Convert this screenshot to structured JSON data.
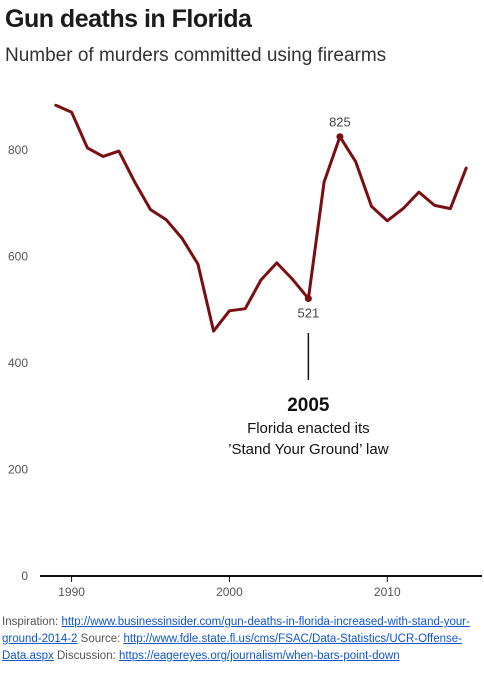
{
  "chart_data": {
    "type": "line",
    "title": "Gun deaths in Florida",
    "subtitle": "Number of murders committed using firearms",
    "xlim": [
      1988,
      2016
    ],
    "ylim": [
      0,
      900
    ],
    "y_inverted": true,
    "x_ticks": [
      "1990",
      "2000",
      "2010"
    ],
    "y_ticks": [
      "0",
      "200",
      "400",
      "600",
      "800"
    ],
    "grid": false,
    "colors": {
      "line": "#7a0f12"
    },
    "series": [
      {
        "x": [
          1989,
          1990,
          1991,
          1992,
          1993,
          1994,
          1995,
          1996,
          1997,
          1998,
          1999,
          2000,
          2001,
          2002,
          2003,
          2004,
          2005,
          2006,
          2007,
          2008,
          2009,
          2010,
          2011,
          2012,
          2013,
          2014,
          2015
        ],
        "values": [
          884,
          871,
          804,
          788,
          798,
          740,
          688,
          669,
          634,
          586,
          460,
          498,
          502,
          556,
          588,
          557,
          521,
          740,
          825,
          778,
          694,
          667,
          690,
          721,
          696,
          690,
          766
        ]
      }
    ],
    "data_labels": [
      {
        "x": 2007,
        "text": "825"
      },
      {
        "x": 2005,
        "text": "521"
      }
    ],
    "annotation": {
      "x": 2005,
      "year": "2005",
      "line1": "Florida enacted its",
      "line2": "’Stand Your Ground’ law"
    }
  },
  "footer": {
    "inspiration_label": "Inspiration:",
    "inspiration_url": "http://www.businessinsider.com/gun-deaths-in-florida-increased-with-stand-your-ground-2014-2",
    "source_label": "Source:",
    "source_url": "http://www.fdle.state.fl.us/cms/FSAC/Data-Statistics/UCR-Offense-Data.aspx",
    "discussion_label": "Discussion:",
    "discussion_url": "https://eagereyes.org/journalism/when-bars-point-down"
  }
}
